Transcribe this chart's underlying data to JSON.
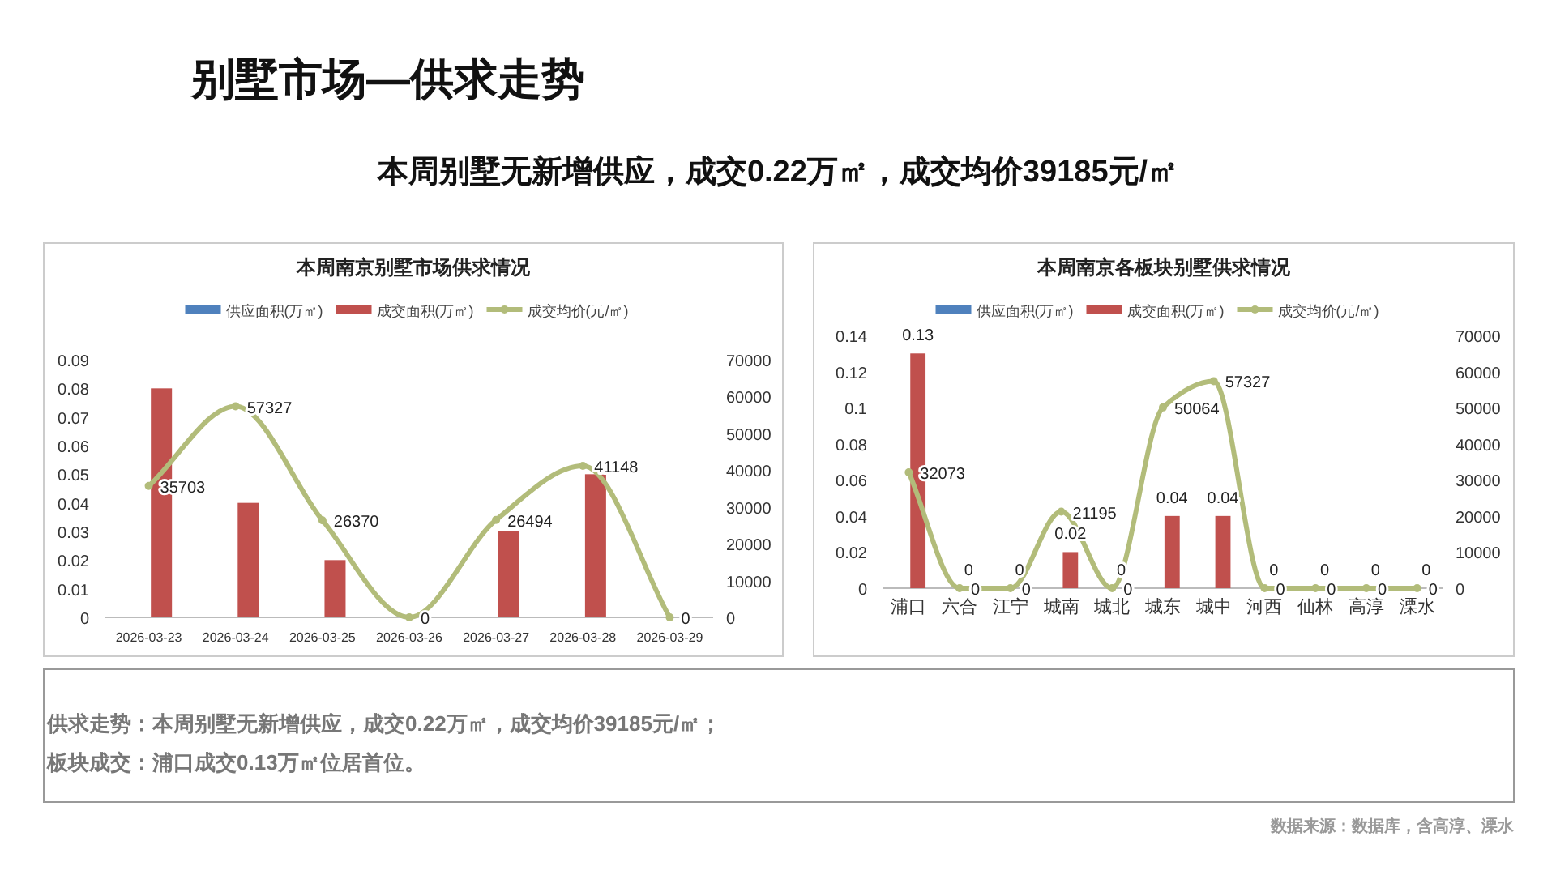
{
  "chart_data": [
    {
      "type": "other",
      "title": "别墅市场—供求走势",
      "subtitle": "本周别墅无新增供应，成交0.22万㎡，成交均价39185元/㎡"
    },
    {
      "type": "bar",
      "title": "本周南京别墅市场供求情况",
      "categories": [
        "2026-03-23",
        "2026-03-24",
        "2026-03-25",
        "2026-03-26",
        "2026-03-27",
        "2026-03-28",
        "2026-03-29"
      ],
      "series": [
        {
          "name": "供应面积(万㎡)",
          "color": "#4f81bd",
          "values": [
            0,
            0,
            0,
            0,
            0,
            0,
            0
          ]
        },
        {
          "name": "成交面积(万㎡)",
          "color": "#c0504d",
          "values": [
            0.08,
            0.04,
            0.02,
            0,
            0.03,
            0.05,
            0
          ]
        },
        {
          "name": "成交均价(元/㎡)",
          "type": "line",
          "axis": "y2",
          "color": "#b2bc7a",
          "marker": "circle",
          "line_style": "solid",
          "values": [
            35703,
            57327,
            26370,
            0,
            26494,
            41148,
            0
          ],
          "value_labels": [
            "35703",
            "57327",
            "26370",
            "0",
            "26494",
            "41148",
            "0"
          ]
        }
      ],
      "ylim": [
        0,
        0.09
      ],
      "yticks": [
        0,
        0.01,
        0.02,
        0.03,
        0.04,
        0.05,
        0.06,
        0.07,
        0.08,
        0.09
      ],
      "y2lim": [
        0,
        70000
      ],
      "y2ticks": [
        0,
        10000,
        20000,
        30000,
        40000,
        50000,
        60000,
        70000
      ],
      "legend": "top"
    },
    {
      "type": "bar",
      "title": "本周南京各板块别墅供求情况",
      "categories": [
        "浦口",
        "六合",
        "江宁",
        "城南",
        "城北",
        "城东",
        "城中",
        "河西",
        "仙林",
        "高淳",
        "溧水"
      ],
      "series": [
        {
          "name": "供应面积(万㎡)",
          "color": "#4f81bd",
          "values": [
            0,
            0,
            0,
            0,
            0,
            0,
            0,
            0,
            0,
            0,
            0
          ]
        },
        {
          "name": "成交面积(万㎡)",
          "color": "#c0504d",
          "values": [
            0.13,
            0,
            0,
            0.02,
            0,
            0.04,
            0.04,
            0,
            0,
            0,
            0
          ],
          "value_labels": [
            "0.13",
            "0",
            "0",
            "0.02",
            "0",
            "0.04",
            "0.04",
            "0",
            "0",
            "0",
            "0"
          ]
        },
        {
          "name": "成交均价(元/㎡)",
          "type": "line",
          "axis": "y2",
          "color": "#b2bc7a",
          "marker": "circle",
          "line_style": "solid",
          "values": [
            32073,
            0,
            0,
            21195,
            0,
            50064,
            57327,
            0,
            0,
            0,
            0
          ],
          "value_labels": [
            "32073",
            "0",
            "0",
            "21195",
            "0",
            "50064",
            "57327",
            "0",
            "0",
            "0",
            "0"
          ]
        }
      ],
      "ylim": [
        0,
        0.14
      ],
      "yticks": [
        0,
        0.02,
        0.04,
        0.06,
        0.08,
        0.1,
        0.12,
        0.14
      ],
      "y2lim": [
        0,
        70000
      ],
      "y2ticks": [
        0,
        10000,
        20000,
        30000,
        40000,
        50000,
        60000,
        70000
      ],
      "legend": "top"
    },
    {
      "type": "other",
      "annotations": [
        "供求走势：本周别墅无新增供应，成交0.22万㎡，成交均价39185元/㎡；",
        "板块成交：浦口成交0.13万㎡位居首位。",
        "数据来源：数据库，含高淳、溧水"
      ]
    }
  ]
}
